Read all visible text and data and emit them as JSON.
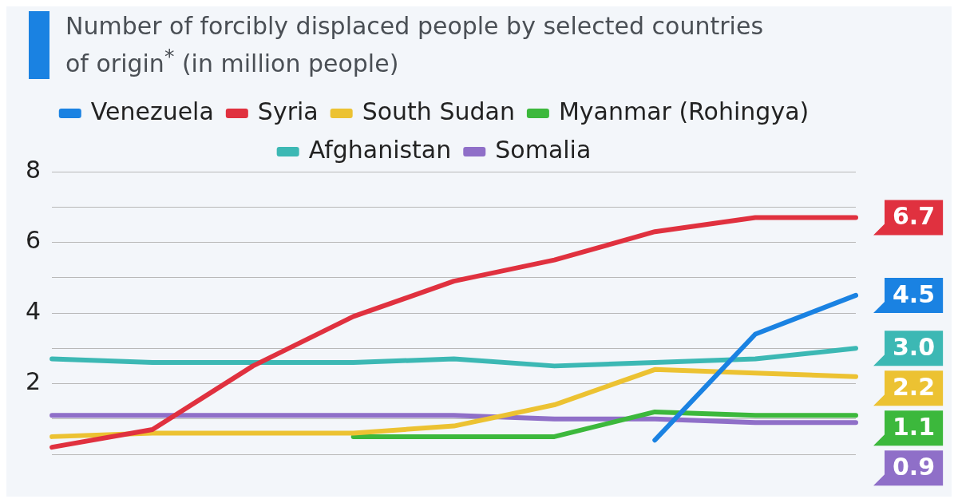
{
  "chart_data": {
    "type": "line",
    "title": "Number of forcibly displaced people by selected countries of origin$^{*}$ (in million people)",
    "categories": [
      null,
      null,
      null,
      null,
      null,
      null,
      null,
      null,
      null
    ],
    "series": [
      {
        "name": "Venezuela",
        "color": "#1a82e2",
        "values": [
          null,
          null,
          null,
          null,
          null,
          null,
          0.4,
          3.4,
          4.5
        ],
        "value_labels": [
          null,
          null,
          null,
          null,
          null,
          null,
          null,
          null,
          "4.5"
        ]
      },
      {
        "name": "Syria",
        "color": "#e0313f",
        "values": [
          0.2,
          0.7,
          2.5,
          3.9,
          4.9,
          5.5,
          6.3,
          6.7,
          6.7
        ],
        "value_labels": [
          null,
          null,
          null,
          null,
          null,
          null,
          null,
          null,
          "6.7"
        ]
      },
      {
        "name": "South Sudan",
        "color": "#ecc232",
        "values": [
          0.5,
          0.6,
          0.6,
          0.6,
          0.8,
          1.4,
          2.4,
          2.3,
          2.2
        ],
        "value_labels": [
          null,
          null,
          null,
          null,
          null,
          null,
          null,
          null,
          "2.2"
        ]
      },
      {
        "name": "Myanmar (Rohingya)",
        "color": "#3cb83c",
        "values": [
          null,
          null,
          null,
          0.5,
          0.5,
          0.5,
          1.2,
          1.1,
          1.1
        ],
        "value_labels": [
          null,
          null,
          null,
          null,
          null,
          null,
          null,
          null,
          "1.1"
        ]
      },
      {
        "name": "Afghanistan",
        "color": "#3cb8b4",
        "values": [
          2.7,
          2.6,
          2.6,
          2.6,
          2.7,
          2.5,
          2.6,
          2.7,
          3.0
        ],
        "value_labels": [
          null,
          null,
          null,
          null,
          null,
          null,
          null,
          null,
          "3.0"
        ]
      },
      {
        "name": "Somalia",
        "color": "#8f6fc8",
        "values": [
          1.1,
          1.1,
          1.1,
          1.1,
          1.1,
          1.0,
          1.0,
          0.9,
          0.9
        ],
        "value_labels": [
          null,
          null,
          null,
          null,
          null,
          null,
          null,
          null,
          "0.9"
        ]
      }
    ],
    "ylim": [
      0,
      8
    ],
    "yticks": [
      {
        "value": 0,
        "label": null
      },
      {
        "value": 1,
        "label": null
      },
      2,
      {
        "value": 3,
        "label": null
      },
      4,
      {
        "value": 5,
        "label": null
      },
      6,
      {
        "value": 7,
        "label": null
      },
      8
    ],
    "grid": "y",
    "legend": "top",
    "tick_labels": "y",
    "marker": "none",
    "line_style": "solid"
  }
}
